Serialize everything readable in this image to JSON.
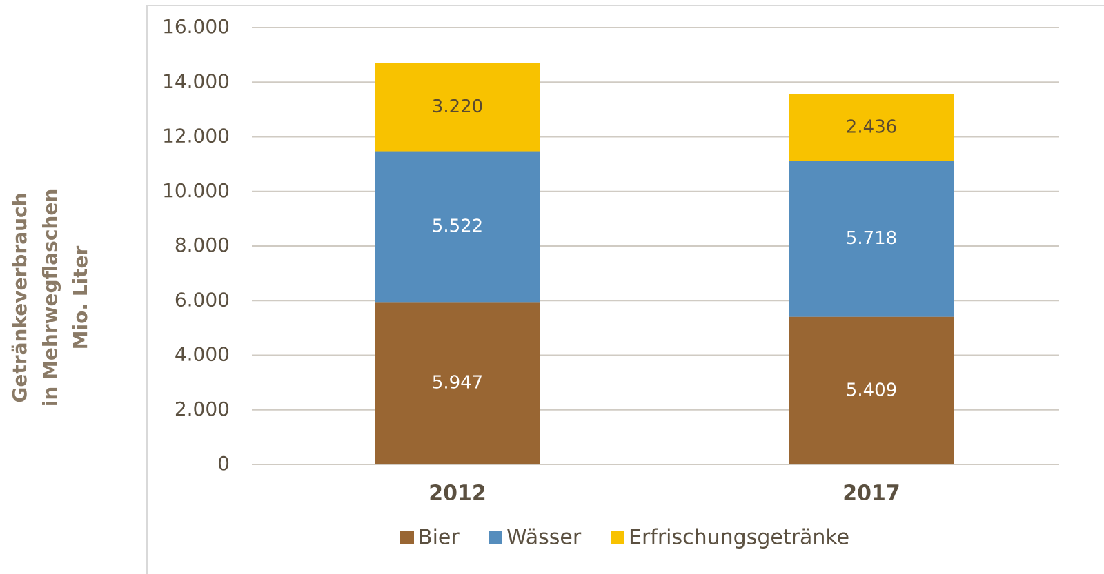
{
  "chart_data": {
    "type": "stacked_bar",
    "y_label": [
      "Getränkeverbrauch",
      "in Mehrwegflaschen",
      "Mio. Liter"
    ],
    "categories": [
      "2012",
      "2017"
    ],
    "series": [
      {
        "name": "Bier",
        "color": "#996633",
        "label_color": "#ffffff",
        "values": [
          5947,
          5409
        ],
        "value_labels": [
          "5.947",
          "5.409"
        ]
      },
      {
        "name": "Wässer",
        "color": "#558dbd",
        "label_color": "#ffffff",
        "values": [
          5522,
          5718
        ],
        "value_labels": [
          "5.522",
          "5.718"
        ]
      },
      {
        "name": "Erfrischungsgetränke",
        "color": "#f8c200",
        "label_color": "#5a4a30",
        "values": [
          3220,
          2436
        ],
        "value_labels": [
          "3.220",
          "2.436"
        ]
      }
    ],
    "ylim": [
      0,
      16000
    ],
    "yticks": [
      0,
      {
        "value": 2000,
        "label": "2.000"
      },
      {
        "value": 4000,
        "label": "4.000"
      },
      {
        "value": 6000,
        "label": "6.000"
      },
      {
        "value": 8000,
        "label": "8.000"
      },
      {
        "value": 10000,
        "label": "10.000"
      },
      {
        "value": 12000,
        "label": "12.000"
      },
      {
        "value": 14000,
        "label": "14.000"
      },
      {
        "value": 16000,
        "label": "16.000"
      }
    ],
    "grid": true,
    "legend": "bottom"
  }
}
